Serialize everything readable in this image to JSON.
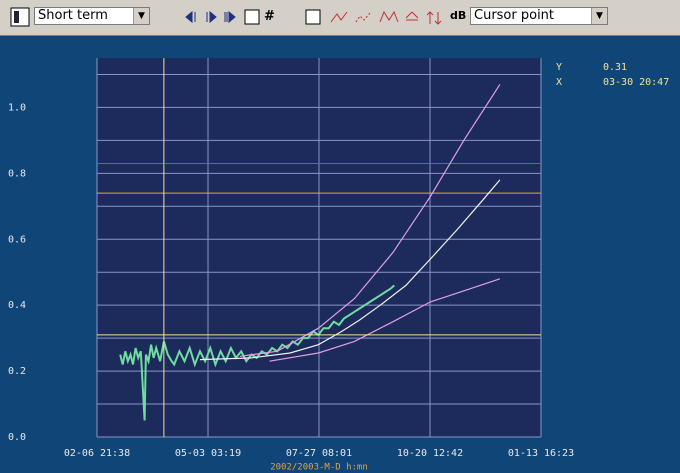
{
  "toolbar": {
    "period": "Short term",
    "mode": "Cursor point",
    "grid_button": "#",
    "db_button": "dB"
  },
  "chart_data": {
    "type": "line",
    "x_label": "2002/2003-M-D h:mn",
    "xlim": [
      0,
      344.95
    ],
    "xticks": [
      {
        "value": 0,
        "label": "02-06 21:38"
      },
      {
        "value": 86.24,
        "label": "05-03 03:19"
      },
      {
        "value": 172.47,
        "label": "07-27 08:01"
      },
      {
        "value": 258.71,
        "label": "10-20 12:42"
      },
      {
        "value": 344.95,
        "label": "01-13 16:23"
      }
    ],
    "ylim": [
      0,
      1.15
    ],
    "yticks": [
      {
        "value": 0,
        "label": "0.0"
      },
      0.2,
      0.4,
      0.6,
      0.8,
      {
        "value": 1,
        "label": "1.0"
      }
    ],
    "minor_yticks": [
      0.1,
      0.3,
      0.5,
      0.7,
      0.9,
      1.1
    ],
    "grid": true,
    "reference_lines": [
      {
        "value": 0.83,
        "color": "#e8343c"
      },
      {
        "value": 0.74,
        "color": "#f0a838"
      }
    ],
    "cursor": {
      "x_name": "X",
      "y_name": "Y",
      "x": {
        "value": 51.96,
        "label": "03-30 20:47"
      },
      "y": 0.31,
      "color": "#f4e09a"
    },
    "series": [
      {
        "color": "#6fdca0",
        "x": [
          18,
          20,
          22,
          24,
          26,
          28,
          30,
          32,
          34,
          37,
          38,
          40,
          42,
          44,
          46,
          49,
          52,
          55,
          58,
          60,
          64,
          68,
          72,
          76,
          80,
          84,
          88,
          92,
          96,
          100,
          104,
          108,
          112,
          116,
          120,
          124,
          128,
          132,
          136,
          140,
          144,
          148,
          152,
          156,
          160,
          164,
          168,
          172,
          176,
          180,
          184,
          188,
          192,
          196,
          200,
          204,
          208,
          212,
          216,
          220,
          224,
          228,
          231
        ],
        "values": [
          0.25,
          0.22,
          0.26,
          0.23,
          0.25,
          0.22,
          0.27,
          0.24,
          0.26,
          0.05,
          0.25,
          0.23,
          0.28,
          0.24,
          0.27,
          0.23,
          0.29,
          0.25,
          0.23,
          0.22,
          0.26,
          0.23,
          0.27,
          0.22,
          0.26,
          0.23,
          0.27,
          0.22,
          0.26,
          0.23,
          0.27,
          0.24,
          0.26,
          0.23,
          0.25,
          0.24,
          0.26,
          0.25,
          0.27,
          0.26,
          0.28,
          0.27,
          0.29,
          0.28,
          0.3,
          0.3,
          0.32,
          0.31,
          0.33,
          0.33,
          0.35,
          0.34,
          0.36,
          0.37,
          0.38,
          0.39,
          0.4,
          0.41,
          0.42,
          0.43,
          0.44,
          0.45,
          0.46
        ]
      },
      {
        "color": "#f2f2f2",
        "x": [
          80,
          120,
          150,
          172,
          190,
          204,
          220,
          240,
          259,
          280,
          300,
          313
        ],
        "values": [
          0.235,
          0.24,
          0.255,
          0.28,
          0.32,
          0.355,
          0.4,
          0.46,
          0.54,
          0.63,
          0.72,
          0.78
        ]
      },
      {
        "color": "#e0a0e0",
        "x": [
          111,
          140,
          172,
          200,
          230,
          259,
          285,
          313
        ],
        "values": [
          0.245,
          0.26,
          0.33,
          0.42,
          0.56,
          0.73,
          0.9,
          1.07
        ]
      },
      {
        "color": "#e0a0e0",
        "x": [
          134,
          172,
          200,
          230,
          259,
          290,
          313
        ],
        "values": [
          0.23,
          0.255,
          0.29,
          0.35,
          0.41,
          0.45,
          0.48
        ]
      }
    ]
  }
}
